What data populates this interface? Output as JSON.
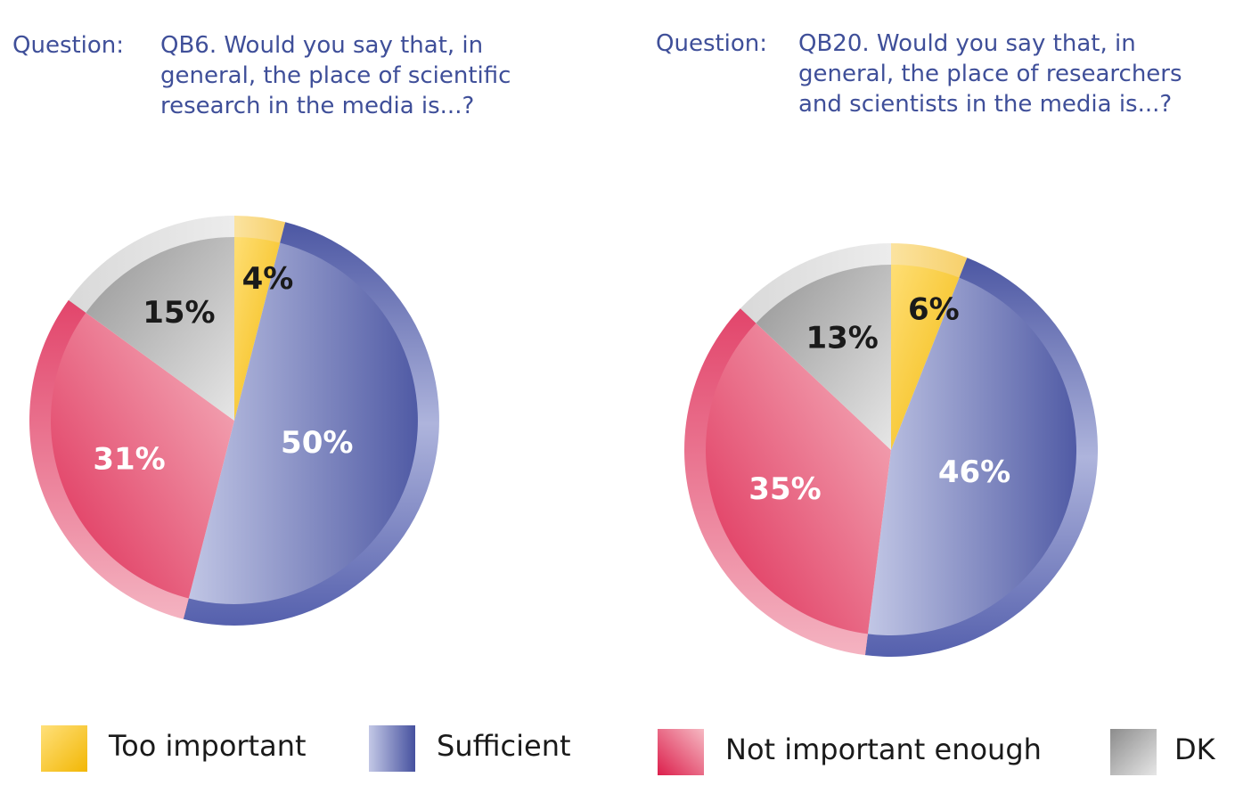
{
  "question_label": "Question:",
  "chart_data": [
    {
      "type": "pie",
      "question": "QB6. Would you say that, in\ngeneral, the place of scientific\nresearch in the media is...?",
      "categories": [
        "Too important",
        "Sufficient",
        "Not important enough",
        "DK"
      ],
      "values": [
        4,
        50,
        31,
        15
      ],
      "labels": [
        "4%",
        "50%",
        "31%",
        "15%"
      ]
    },
    {
      "type": "pie",
      "question": "QB20. Would you say that, in\ngeneral, the place of researchers\nand scientists in the media is...?",
      "categories": [
        "Too important",
        "Sufficient",
        "Not important enough",
        "DK"
      ],
      "values": [
        6,
        46,
        35,
        13
      ],
      "labels": [
        "6%",
        "46%",
        "35%",
        "13%"
      ]
    }
  ],
  "legend": {
    "items": [
      {
        "label": "Too important",
        "color": "#f5c518"
      },
      {
        "label": "Sufficient",
        "color": "#5b66b0"
      },
      {
        "label": "Not important enough",
        "color": "#e0365e"
      },
      {
        "label": "DK",
        "color": "#bdbdbd"
      }
    ]
  }
}
